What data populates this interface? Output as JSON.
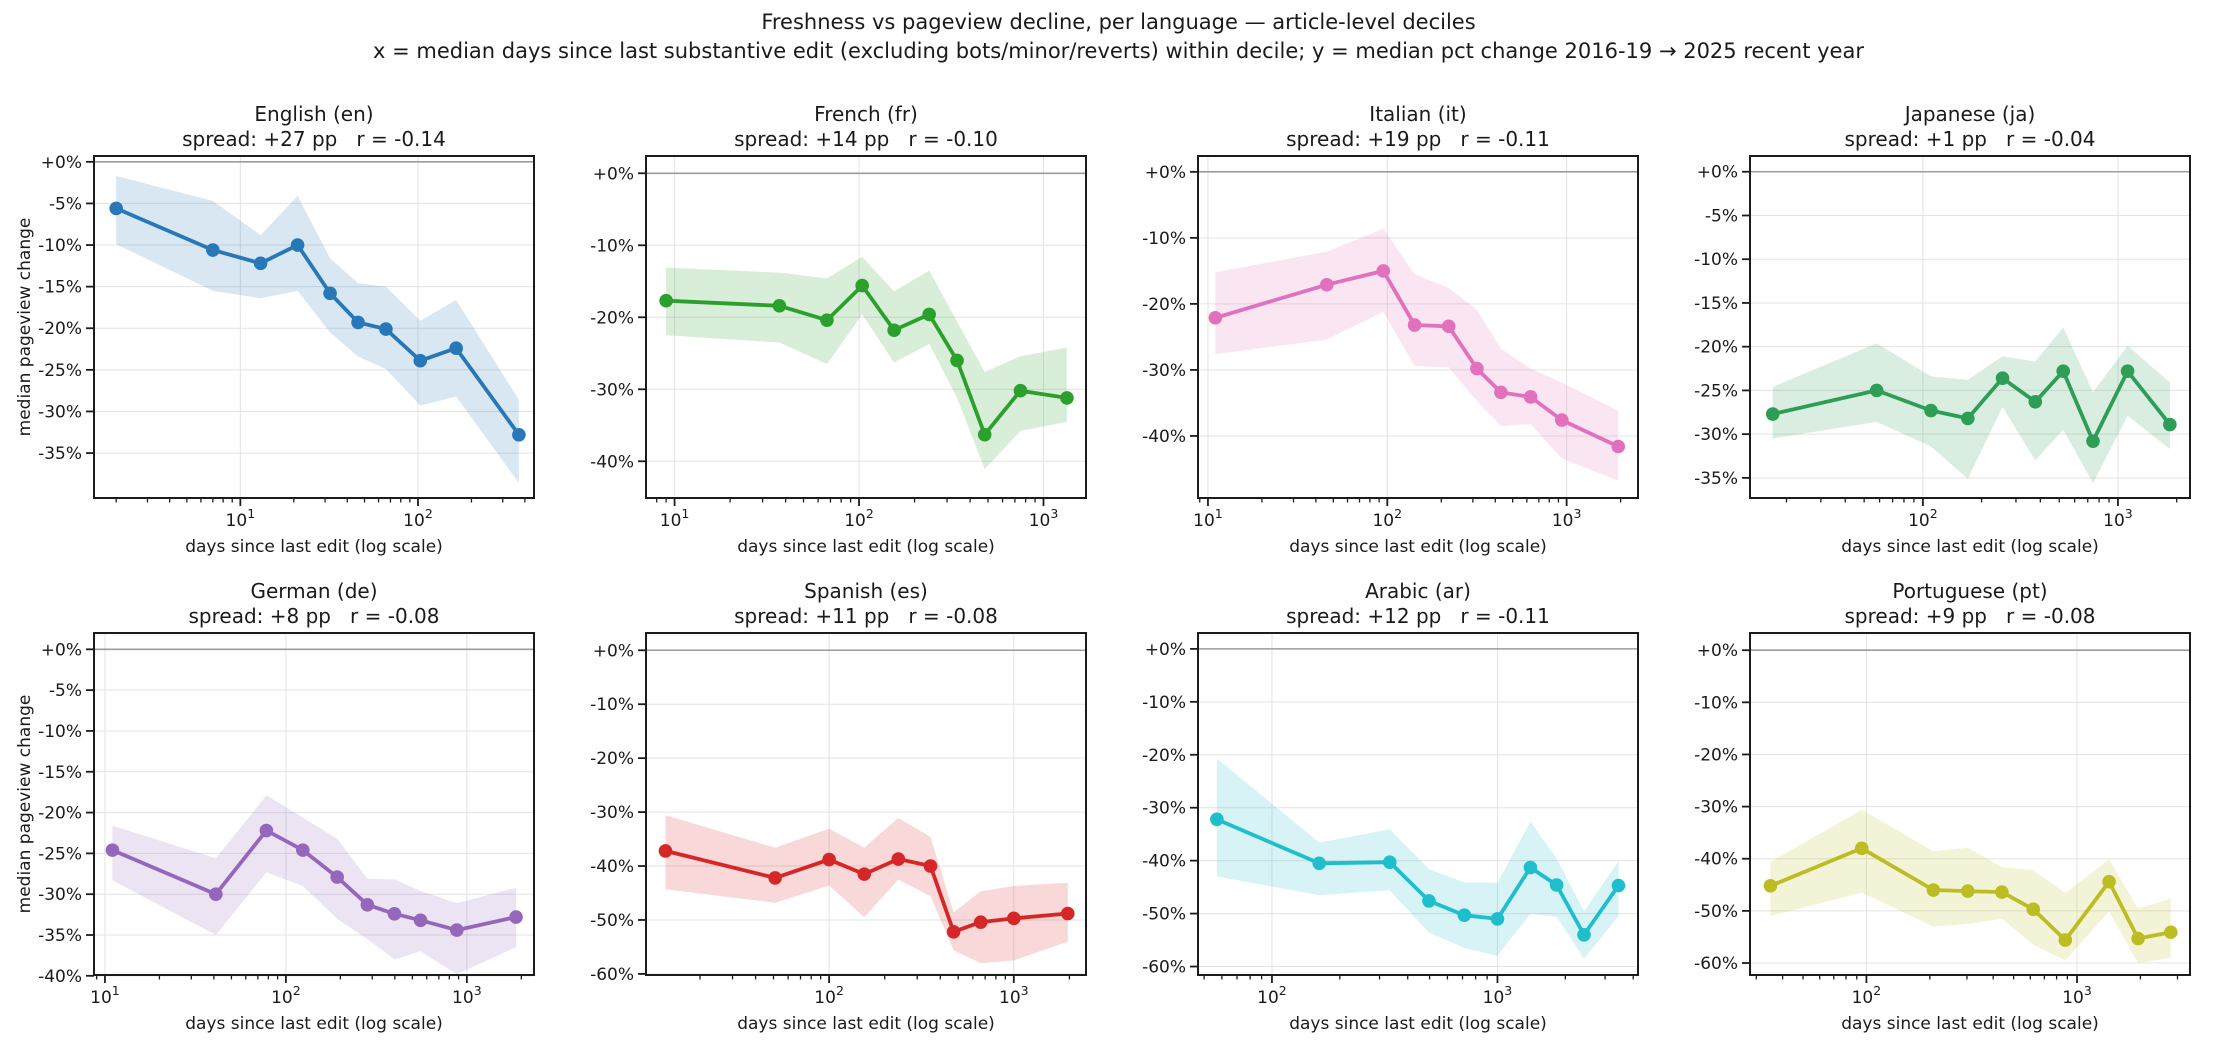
{
  "figure": {
    "title": "Freshness vs pageview decline, per language — article-level deciles",
    "subtitle": "x = median days since last substantive edit (excluding bots/minor/reverts) within decile; y = median pct change 2016-19 → 2025 recent year",
    "xlabel": "days since last edit (log scale)",
    "ylabel": "median pageview change"
  },
  "chart_data": [
    {
      "type": "line",
      "title": "English (en)",
      "stats": "spread: +27 pp   r = -0.14",
      "spread_pp": 27,
      "r": -0.14,
      "color": "#2878b8",
      "x": [
        2,
        7,
        13,
        21,
        32,
        46,
        66,
        103,
        164,
        370
      ],
      "y": [
        -5.6,
        -10.6,
        -12.2,
        -10.0,
        -15.8,
        -19.3,
        -20.1,
        -23.9,
        -22.4,
        -32.8
      ],
      "band_upper": [
        -1.7,
        -4.7,
        -8.8,
        -4.1,
        -11.6,
        -14.6,
        -15.0,
        -19.1,
        -16.6,
        -28.6
      ],
      "band_lower": [
        -9.9,
        -15.5,
        -16.4,
        -15.5,
        -20.5,
        -23.4,
        -24.9,
        -29.3,
        -28.2,
        -38.6
      ],
      "xlim": [
        1.5,
        450
      ],
      "ylim": [
        -40.4,
        0.7
      ],
      "yticks": [
        0,
        -5,
        -10,
        -15,
        -20,
        -25,
        -30,
        -35
      ],
      "ytick_labels": [
        "+0%",
        "-5%",
        "-10%",
        "-15%",
        "-20%",
        "-25%",
        "-30%",
        "-35%"
      ]
    },
    {
      "type": "line",
      "title": "French (fr)",
      "stats": "spread: +14 pp   r = -0.10",
      "spread_pp": 14,
      "r": -0.1,
      "color": "#2ca02c",
      "x": [
        9,
        37,
        67,
        104,
        155,
        240,
        340,
        480,
        750,
        1340
      ],
      "y": [
        -17.7,
        -18.4,
        -20.4,
        -15.6,
        -21.8,
        -19.6,
        -26.0,
        -36.3,
        -30.2,
        -31.2
      ],
      "band_upper": [
        -13.1,
        -13.8,
        -14.6,
        -11.6,
        -16.4,
        -13.5,
        -20.6,
        -27.6,
        -25.4,
        -24.2
      ],
      "band_lower": [
        -22.5,
        -23.5,
        -26.5,
        -19.6,
        -26.3,
        -23.7,
        -31.2,
        -41.1,
        -35.8,
        -34.5
      ],
      "xlim": [
        7,
        1700
      ],
      "ylim": [
        -45.1,
        2.4
      ],
      "yticks": [
        0,
        -10,
        -20,
        -30,
        -40
      ],
      "ytick_labels": [
        "+0%",
        "-10%",
        "-20%",
        "-30%",
        "-40%"
      ]
    },
    {
      "type": "line",
      "title": "Italian (it)",
      "stats": "spread: +19 pp   r = -0.11",
      "spread_pp": 19,
      "r": -0.11,
      "color": "#e170bd",
      "x": [
        11,
        46,
        95,
        142,
        220,
        316,
        430,
        630,
        940,
        1940
      ],
      "y": [
        -22.1,
        -17.1,
        -15.0,
        -23.2,
        -23.4,
        -29.8,
        -33.4,
        -34.1,
        -37.6,
        -41.6
      ],
      "band_upper": [
        -15.2,
        -12.1,
        -8.6,
        -15.5,
        -17.6,
        -20.9,
        -26.8,
        -29.8,
        -31.9,
        -36.2
      ],
      "band_lower": [
        -27.6,
        -25.4,
        -21.2,
        -29.4,
        -29.6,
        -34.7,
        -38.5,
        -38.2,
        -43.4,
        -46.8
      ],
      "xlim": [
        8.8,
        2500
      ],
      "ylim": [
        -49.4,
        2.4
      ],
      "yticks": [
        0,
        -10,
        -20,
        -30,
        -40
      ],
      "ytick_labels": [
        "+0%",
        "-10%",
        "-20%",
        "-30%",
        "-40%"
      ]
    },
    {
      "type": "line",
      "title": "Japanese (ja)",
      "stats": "spread: +1 pp   r = -0.04",
      "spread_pp": 1,
      "r": -0.04,
      "color": "#2e9e57",
      "x": [
        17,
        58,
        110,
        170,
        256,
        377,
        524,
        745,
        1120,
        1845
      ],
      "y": [
        -27.7,
        -25.0,
        -27.3,
        -28.2,
        -23.6,
        -26.3,
        -22.8,
        -30.8,
        -22.8,
        -28.9
      ],
      "band_upper": [
        -24.6,
        -19.6,
        -23.4,
        -23.8,
        -21.1,
        -21.7,
        -17.8,
        -25.2,
        -19.9,
        -24.1
      ],
      "band_lower": [
        -30.5,
        -28.6,
        -31.4,
        -35.1,
        -26.9,
        -33.0,
        -29.5,
        -35.6,
        -27.9,
        -31.7
      ],
      "xlim": [
        13,
        2340
      ],
      "ylim": [
        -37.3,
        1.8
      ],
      "yticks": [
        0,
        -5,
        -10,
        -15,
        -20,
        -25,
        -30,
        -35
      ],
      "ytick_labels": [
        "+0%",
        "-5%",
        "-10%",
        "-15%",
        "-20%",
        "-25%",
        "-30%",
        "-35%"
      ]
    },
    {
      "type": "line",
      "title": "German (de)",
      "stats": "spread: +8 pp   r = -0.08",
      "spread_pp": 8,
      "r": -0.08,
      "color": "#9467bd",
      "x": [
        11,
        41,
        78,
        124,
        192,
        282,
        398,
        555,
        880,
        1870
      ],
      "y": [
        -24.6,
        -30.0,
        -22.2,
        -24.6,
        -27.9,
        -31.3,
        -32.4,
        -33.2,
        -34.4,
        -32.8
      ],
      "band_upper": [
        -21.6,
        -25.6,
        -17.9,
        -20.6,
        -23.2,
        -28.1,
        -28.2,
        -29.6,
        -31.1,
        -29.2
      ],
      "band_lower": [
        -28.3,
        -35.0,
        -27.3,
        -29.0,
        -33.0,
        -35.5,
        -38.0,
        -37.0,
        -39.8,
        -36.5
      ],
      "xlim": [
        8.7,
        2350
      ],
      "ylim": [
        -39.9,
        2.0
      ],
      "yticks": [
        0,
        -5,
        -10,
        -15,
        -20,
        -25,
        -30,
        -35,
        -40
      ],
      "ytick_labels": [
        "+0%",
        "-5%",
        "-10%",
        "-15%",
        "-20%",
        "-25%",
        "-30%",
        "-35%",
        "-40%"
      ]
    },
    {
      "type": "line",
      "title": "Spanish (es)",
      "stats": "spread: +11 pp   r = -0.08",
      "spread_pp": 11,
      "r": -0.08,
      "color": "#d62728",
      "x": [
        13,
        51,
        100,
        155,
        237,
        354,
        472,
        662,
        1000,
        1960
      ],
      "y": [
        -37.2,
        -42.2,
        -38.8,
        -41.5,
        -38.7,
        -40.0,
        -52.2,
        -50.4,
        -49.7,
        -48.8
      ],
      "band_upper": [
        -30.6,
        -36.6,
        -33.1,
        -36.6,
        -31.1,
        -34.6,
        -48.6,
        -44.7,
        -43.7,
        -43.1
      ],
      "band_lower": [
        -44.3,
        -46.8,
        -43.6,
        -49.5,
        -42.5,
        -45.6,
        -55.6,
        -58.0,
        -57.5,
        -54.0
      ],
      "xlim": [
        10.2,
        2460
      ],
      "ylim": [
        -60.2,
        3.2
      ],
      "yticks": [
        0,
        -10,
        -20,
        -30,
        -40,
        -50,
        -60
      ],
      "ytick_labels": [
        "+0%",
        "-10%",
        "-20%",
        "-30%",
        "-40%",
        "-50%",
        "-60%"
      ]
    },
    {
      "type": "line",
      "title": "Arabic (ar)",
      "stats": "spread: +12 pp   r = -0.11",
      "spread_pp": 12,
      "r": -0.11,
      "color": "#1fbecd",
      "x": [
        57,
        162,
        333,
        497,
        713,
        1000,
        1400,
        1830,
        2420,
        3440
      ],
      "y": [
        -32.2,
        -40.5,
        -40.3,
        -47.6,
        -50.3,
        -51.0,
        -41.3,
        -44.6,
        -54.0,
        -44.7
      ],
      "band_upper": [
        -20.7,
        -36.6,
        -34.1,
        -41.6,
        -44.1,
        -44.2,
        -32.6,
        -39.6,
        -49.6,
        -40.1
      ],
      "band_lower": [
        -43.0,
        -46.5,
        -45.6,
        -53.6,
        -56.5,
        -58.0,
        -50.0,
        -50.6,
        -58.5,
        -50.5
      ],
      "xlim": [
        47,
        4200
      ],
      "ylim": [
        -61.6,
        3.0
      ],
      "yticks": [
        0,
        -10,
        -20,
        -30,
        -40,
        -50,
        -60
      ],
      "ytick_labels": [
        "+0%",
        "-10%",
        "-20%",
        "-30%",
        "-40%",
        "-50%",
        "-60%"
      ]
    },
    {
      "type": "line",
      "title": "Portuguese (pt)",
      "stats": "spread: +9 pp   r = -0.08",
      "spread_pp": 9,
      "r": -0.08,
      "color": "#bcbd22",
      "x": [
        35,
        95,
        208,
        303,
        440,
        620,
        880,
        1420,
        1950,
        2790
      ],
      "y": [
        -45.2,
        -38.0,
        -46.0,
        -46.2,
        -46.4,
        -49.7,
        -55.6,
        -44.4,
        -55.3,
        -54.1
      ],
      "band_upper": [
        -40.6,
        -30.6,
        -38.6,
        -37.9,
        -41.6,
        -42.2,
        -46.6,
        -40.1,
        -49.6,
        -47.6
      ],
      "band_lower": [
        -51.0,
        -46.5,
        -53.0,
        -52.5,
        -51.5,
        -56.5,
        -59.5,
        -50.1,
        -60.0,
        -59.0
      ],
      "xlim": [
        28,
        3440
      ],
      "ylim": [
        -62.3,
        3.3
      ],
      "yticks": [
        0,
        -10,
        -20,
        -30,
        -40,
        -50,
        -60
      ],
      "ytick_labels": [
        "+0%",
        "-10%",
        "-20%",
        "-30%",
        "-40%",
        "-50%",
        "-60%"
      ]
    }
  ],
  "style": {
    "grid_color": "#e3e3e3",
    "zero_line_color": "#9c9c9c",
    "spine_color": "#1c1c1c",
    "band_opacity": 0.18
  }
}
